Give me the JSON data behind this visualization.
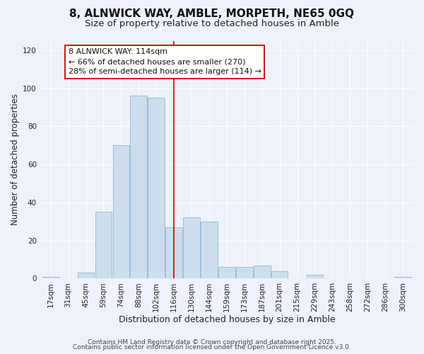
{
  "title": "8, ALNWICK WAY, AMBLE, MORPETH, NE65 0GQ",
  "subtitle": "Size of property relative to detached houses in Amble",
  "xlabel": "Distribution of detached houses by size in Amble",
  "ylabel": "Number of detached properties",
  "bar_labels": [
    "17sqm",
    "31sqm",
    "45sqm",
    "59sqm",
    "74sqm",
    "88sqm",
    "102sqm",
    "116sqm",
    "130sqm",
    "144sqm",
    "159sqm",
    "173sqm",
    "187sqm",
    "201sqm",
    "215sqm",
    "229sqm",
    "243sqm",
    "258sqm",
    "272sqm",
    "286sqm",
    "300sqm"
  ],
  "bar_values": [
    1,
    0,
    3,
    35,
    70,
    96,
    95,
    27,
    32,
    30,
    6,
    6,
    7,
    4,
    0,
    2,
    0,
    0,
    0,
    0,
    1
  ],
  "bar_color": "#ccdded",
  "bar_edge_color": "#8eb8d4",
  "vline_x_index": 7,
  "vline_color": "#cc0000",
  "annotation_line1": "8 ALNWICK WAY: 114sqm",
  "annotation_line2": "← 66% of detached houses are smaller (270)",
  "annotation_line3": "28% of semi-detached houses are larger (114) →",
  "annotation_box_edge": "#cc0000",
  "annotation_box_face": "white",
  "ylim": [
    0,
    125
  ],
  "yticks": [
    0,
    20,
    40,
    60,
    80,
    100,
    120
  ],
  "footer_line1": "Contains HM Land Registry data © Crown copyright and database right 2025.",
  "footer_line2": "Contains public sector information licensed under the Open Government Licence v3.0.",
  "background_color": "#eef2fa",
  "grid_color": "#ffffff",
  "title_fontsize": 11,
  "subtitle_fontsize": 9.5,
  "xlabel_fontsize": 9,
  "ylabel_fontsize": 8.5,
  "tick_fontsize": 7.5,
  "annotation_fontsize": 8,
  "footer_fontsize": 6.5
}
